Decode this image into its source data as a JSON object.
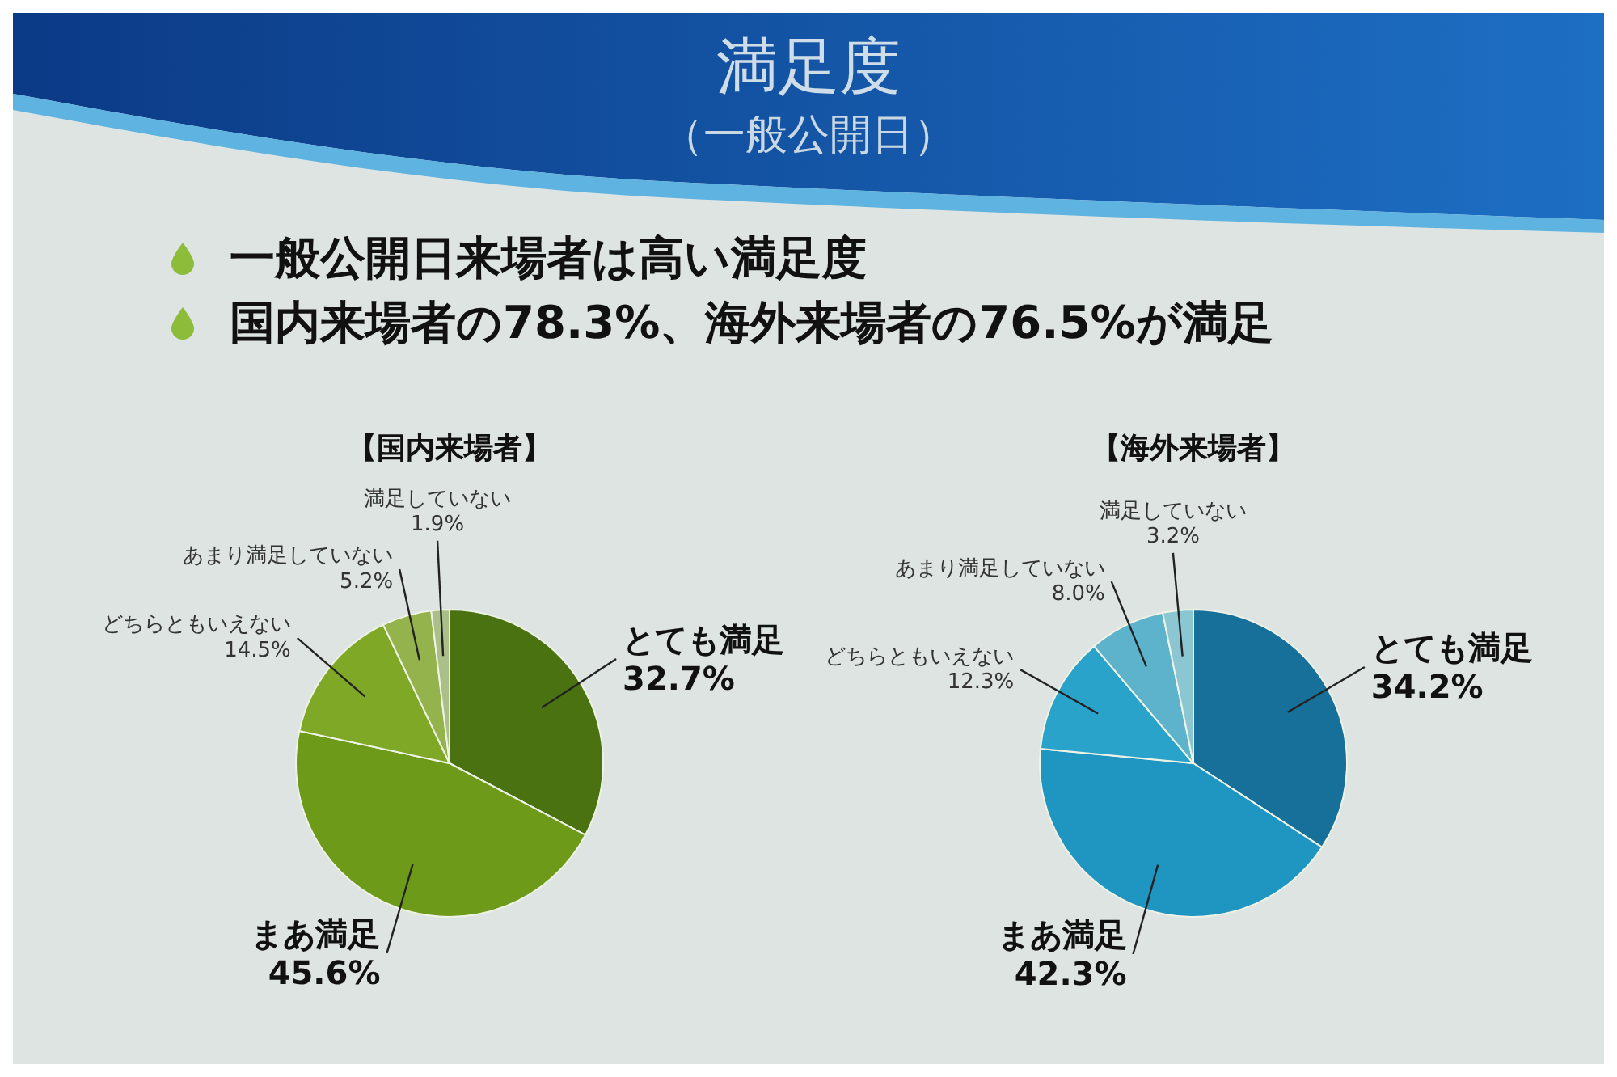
{
  "chart_data": [
    {
      "type": "other",
      "title": "満足度",
      "subtitle": "（一般公開日）",
      "annotations": [
        "一般公開日来場者は高い満足度",
        "国内来場者の78.3%、海外来場者の76.5%が満足"
      ]
    },
    {
      "type": "pie",
      "title": "【国内来場者】",
      "categories": [
        "とても満足",
        "まあ満足",
        "どちらともいえない",
        "あまり満足していない",
        "満足していない"
      ],
      "values": [
        32.7,
        45.6,
        14.5,
        5.2,
        1.9
      ],
      "colors": [
        "#4b7210",
        "#6e9a1a",
        "#7fa826",
        "#95b34c",
        "#abc088"
      ],
      "value_labels": [
        "32.7%",
        "45.6%",
        "14.5%",
        "5.2%",
        "1.9%"
      ]
    },
    {
      "type": "pie",
      "title": "【海外来場者】",
      "categories": [
        "とても満足",
        "まあ満足",
        "どちらともいえない",
        "あまり満足していない",
        "満足していない"
      ],
      "values": [
        34.2,
        42.3,
        12.3,
        8.0,
        3.2
      ],
      "colors": [
        "#17709a",
        "#1f95c2",
        "#2aa3cb",
        "#5db3cc",
        "#8cc6d2"
      ],
      "value_labels": [
        "34.2%",
        "42.3%",
        "12.3%",
        "8.0%",
        "3.2%"
      ]
    }
  ]
}
